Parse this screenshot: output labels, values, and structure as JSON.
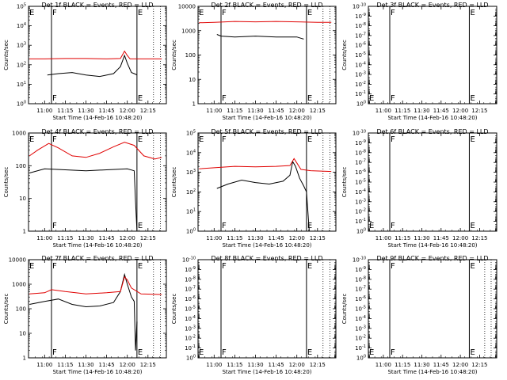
{
  "figure": {
    "background": "#ffffff",
    "event_color": "#000000",
    "lld_color": "#e00000"
  },
  "chart_data": [
    {
      "type": "line",
      "title": "Det 1f BLACK = Events, RED = LLD",
      "xlabel": "Start Time (14-Feb-16 10:48:20)",
      "ylabel": "Counts/sec",
      "xticks": [
        "11:00",
        "11:15",
        "11:30",
        "11:45",
        "12:00",
        "12:15"
      ],
      "yscale": "log",
      "ylim": [
        1,
        100000
      ],
      "yticks": [
        "10^0",
        "10^1",
        "10^2",
        "10^3",
        "10^4",
        "10^5"
      ],
      "markers": [
        {
          "time": "11:05",
          "label": "F"
        },
        {
          "time": "12:07",
          "label": "E"
        }
      ],
      "dotted_lines": [
        "12:19",
        "12:24"
      ],
      "series": [
        {
          "name": "Events",
          "color": "#000000",
          "x": [
            "11:02",
            "11:10",
            "11:20",
            "11:30",
            "11:40",
            "11:50",
            "11:55",
            "11:58",
            "12:00",
            "12:03",
            "12:05",
            "12:07"
          ],
          "values": [
            30,
            35,
            40,
            30,
            25,
            35,
            80,
            300,
            120,
            40,
            35,
            30
          ]
        },
        {
          "name": "LLD",
          "color": "#e00000",
          "x": [
            "10:49",
            "11:00",
            "11:15",
            "11:30",
            "11:45",
            "11:55",
            "11:58",
            "12:00",
            "12:02",
            "12:10",
            "12:25"
          ],
          "values": [
            200,
            200,
            210,
            210,
            200,
            210,
            500,
            300,
            200,
            200,
            200
          ]
        }
      ]
    },
    {
      "type": "line",
      "title": "Det 2f BLACK = Events, RED = LLD",
      "xlabel": "Start Time (14-Feb-16 10:48:20)",
      "ylabel": "Counts/sec",
      "xticks": [
        "11:00",
        "11:15",
        "11:30",
        "11:45",
        "12:00",
        "12:15"
      ],
      "yscale": "log",
      "ylim": [
        1,
        10000
      ],
      "yticks": [
        "1",
        "10",
        "100",
        "1000",
        "10000"
      ],
      "markers": [
        {
          "time": "11:05",
          "label": "F"
        },
        {
          "time": "12:07",
          "label": "E"
        }
      ],
      "dotted_lines": [
        "12:19",
        "12:24"
      ],
      "series": [
        {
          "name": "Events",
          "color": "#000000",
          "x": [
            "11:02",
            "11:05",
            "11:15",
            "11:30",
            "11:45",
            "12:00",
            "12:05"
          ],
          "values": [
            700,
            600,
            550,
            600,
            550,
            550,
            450
          ]
        },
        {
          "name": "LLD",
          "color": "#e00000",
          "x": [
            "10:49",
            "11:00",
            "11:15",
            "11:30",
            "11:45",
            "12:00",
            "12:15",
            "12:25"
          ],
          "values": [
            2100,
            2200,
            2400,
            2300,
            2400,
            2300,
            2200,
            2200
          ]
        }
      ]
    },
    {
      "type": "line",
      "title": "Det 3f BLACK = Events, RED = LLD",
      "xlabel": "Start Time (14-Feb-16 10:48:20)",
      "ylabel": "Counts/sec",
      "xticks": [
        "11:00",
        "11:15",
        "11:30",
        "11:45",
        "12:00",
        "12:15"
      ],
      "yscale": "log",
      "ylim": [
        1,
        1e-10
      ],
      "yticks": [
        "10^0",
        "10^-1",
        "10^-2",
        "10^-3",
        "10^-4",
        "10^-5",
        "10^-6",
        "10^-7",
        "10^-8",
        "10^-9",
        "10^-10"
      ],
      "markers": [
        {
          "time": "11:05",
          "label": "F"
        },
        {
          "time": "12:07",
          "label": "E"
        }
      ],
      "dotted_lines": [],
      "series": []
    },
    {
      "type": "line",
      "title": "Det 4f BLACK = Events, RED = LLD",
      "xlabel": "Start Time (14-Feb-16 10:48:20)",
      "ylabel": "Counts/sec",
      "xticks": [
        "11:00",
        "11:15",
        "11:30",
        "11:45",
        "12:00",
        "12:15"
      ],
      "yscale": "log",
      "ylim": [
        1,
        1000
      ],
      "yticks": [
        "1",
        "10",
        "100",
        "1000"
      ],
      "markers": [
        {
          "time": "11:05",
          "label": "F"
        },
        {
          "time": "12:07",
          "label": "E"
        }
      ],
      "dotted_lines": [
        "12:19",
        "12:24"
      ],
      "series": [
        {
          "name": "Events",
          "color": "#000000",
          "x": [
            "10:49",
            "11:00",
            "11:15",
            "11:30",
            "11:45",
            "12:00",
            "12:05",
            "12:06",
            "12:07"
          ],
          "values": [
            60,
            80,
            75,
            70,
            75,
            80,
            70,
            8,
            1
          ]
        },
        {
          "name": "LLD",
          "color": "#e00000",
          "x": [
            "10:49",
            "10:55",
            "11:03",
            "11:10",
            "11:20",
            "11:30",
            "11:40",
            "11:50",
            "11:58",
            "12:05",
            "12:12",
            "12:20",
            "12:25"
          ],
          "values": [
            200,
            300,
            480,
            350,
            200,
            180,
            240,
            380,
            520,
            420,
            200,
            160,
            180
          ]
        }
      ]
    },
    {
      "type": "line",
      "title": "Det 5f BLACK = Events, RED = LLD",
      "xlabel": "Start Time (14-Feb-16 10:48:20)",
      "ylabel": "Counts/sec",
      "xticks": [
        "11:00",
        "11:15",
        "11:30",
        "11:45",
        "12:00",
        "12:15"
      ],
      "yscale": "log",
      "ylim": [
        1,
        100000
      ],
      "yticks": [
        "10^0",
        "10^1",
        "10^2",
        "10^3",
        "10^4",
        "10^5"
      ],
      "markers": [
        {
          "time": "11:05",
          "label": "F"
        },
        {
          "time": "12:07",
          "label": "E"
        }
      ],
      "dotted_lines": [
        "12:19",
        "12:24"
      ],
      "series": [
        {
          "name": "Events",
          "color": "#000000",
          "x": [
            "11:02",
            "11:10",
            "11:20",
            "11:30",
            "11:40",
            "11:50",
            "11:55",
            "11:57",
            "11:59",
            "12:02",
            "12:05",
            "12:07",
            "12:09"
          ],
          "values": [
            150,
            250,
            400,
            300,
            250,
            350,
            700,
            3500,
            2000,
            500,
            200,
            100,
            1
          ]
        },
        {
          "name": "LLD",
          "color": "#e00000",
          "x": [
            "10:49",
            "11:00",
            "11:15",
            "11:30",
            "11:45",
            "11:55",
            "11:58",
            "12:00",
            "12:03",
            "12:10",
            "12:25"
          ],
          "values": [
            1500,
            1700,
            2000,
            1900,
            2000,
            2200,
            5000,
            3000,
            1400,
            1200,
            1100
          ]
        }
      ]
    },
    {
      "type": "line",
      "title": "Det 6f BLACK = Events, RED = LLD",
      "xlabel": "Start Time (14-Feb-16 10:48:20)",
      "ylabel": "Counts/sec",
      "xticks": [
        "11:00",
        "11:15",
        "11:30",
        "11:45",
        "12:00",
        "12:15"
      ],
      "yscale": "log",
      "ylim": [
        1,
        1e-10
      ],
      "yticks": [
        "10^0",
        "10^-1",
        "10^-2",
        "10^-3",
        "10^-4",
        "10^-5",
        "10^-6",
        "10^-7",
        "10^-8",
        "10^-9",
        "10^-10"
      ],
      "markers": [
        {
          "time": "11:05",
          "label": "F"
        },
        {
          "time": "12:07",
          "label": "E"
        }
      ],
      "dotted_lines": [],
      "series": []
    },
    {
      "type": "line",
      "title": "Det 7f BLACK = Events, RED = LLD",
      "xlabel": "Start Time (14-Feb-16 10:48:20)",
      "ylabel": "Counts/sec",
      "xticks": [
        "11:00",
        "11:15",
        "11:30",
        "11:45",
        "12:00",
        "12:15"
      ],
      "yscale": "log",
      "ylim": [
        1,
        10000
      ],
      "yticks": [
        "1",
        "10",
        "100",
        "1000",
        "10000"
      ],
      "markers": [
        {
          "time": "11:05",
          "label": "F"
        },
        {
          "time": "12:07",
          "label": "E"
        }
      ],
      "dotted_lines": [
        "12:19",
        "12:24"
      ],
      "series": [
        {
          "name": "Events",
          "color": "#000000",
          "x": [
            "10:49",
            "11:00",
            "11:10",
            "11:20",
            "11:30",
            "11:40",
            "11:50",
            "11:55",
            "11:58",
            "12:00",
            "12:03",
            "12:05",
            "12:06",
            "12:07"
          ],
          "values": [
            150,
            200,
            250,
            150,
            120,
            130,
            180,
            500,
            2500,
            1000,
            300,
            200,
            2,
            30
          ]
        },
        {
          "name": "LLD",
          "color": "#e00000",
          "x": [
            "10:49",
            "11:00",
            "11:05",
            "11:15",
            "11:30",
            "11:45",
            "11:55",
            "11:58",
            "12:00",
            "12:03",
            "12:10",
            "12:25"
          ],
          "values": [
            400,
            450,
            600,
            500,
            400,
            450,
            500,
            2000,
            1500,
            700,
            400,
            380
          ]
        }
      ]
    },
    {
      "type": "line",
      "title": "Det 8f BLACK = Events, RED = LLD",
      "xlabel": "Start Time (14-Feb-16 10:48:20)",
      "ylabel": "Counts/sec",
      "xticks": [
        "11:00",
        "11:15",
        "11:30",
        "11:45",
        "12:00",
        "12:15"
      ],
      "yscale": "log",
      "ylim": [
        1,
        1e-10
      ],
      "yticks": [
        "10^0",
        "10^-1",
        "10^-2",
        "10^-3",
        "10^-4",
        "10^-5",
        "10^-6",
        "10^-7",
        "10^-8",
        "10^-9",
        "10^-10"
      ],
      "markers": [
        {
          "time": "11:05",
          "label": "F"
        },
        {
          "time": "12:07",
          "label": "E"
        }
      ],
      "dotted_lines": [
        "12:19",
        "12:24"
      ],
      "series": []
    },
    {
      "type": "line",
      "title": "Det 9f BLACK = Events, RED = LLD",
      "xlabel": "Start Time (14-Feb-16 10:48:20)",
      "ylabel": "Counts/sec",
      "xticks": [
        "11:00",
        "11:15",
        "11:30",
        "11:45",
        "12:00",
        "12:15"
      ],
      "yscale": "log",
      "ylim": [
        1,
        1e-10
      ],
      "yticks": [
        "10^0",
        "10^-1",
        "10^-2",
        "10^-3",
        "10^-4",
        "10^-5",
        "10^-6",
        "10^-7",
        "10^-8",
        "10^-9",
        "10^-10"
      ],
      "markers": [
        {
          "time": "11:05",
          "label": "F"
        },
        {
          "time": "12:07",
          "label": "E"
        }
      ],
      "dotted_lines": [
        "12:19",
        "12:24"
      ],
      "series": []
    }
  ]
}
